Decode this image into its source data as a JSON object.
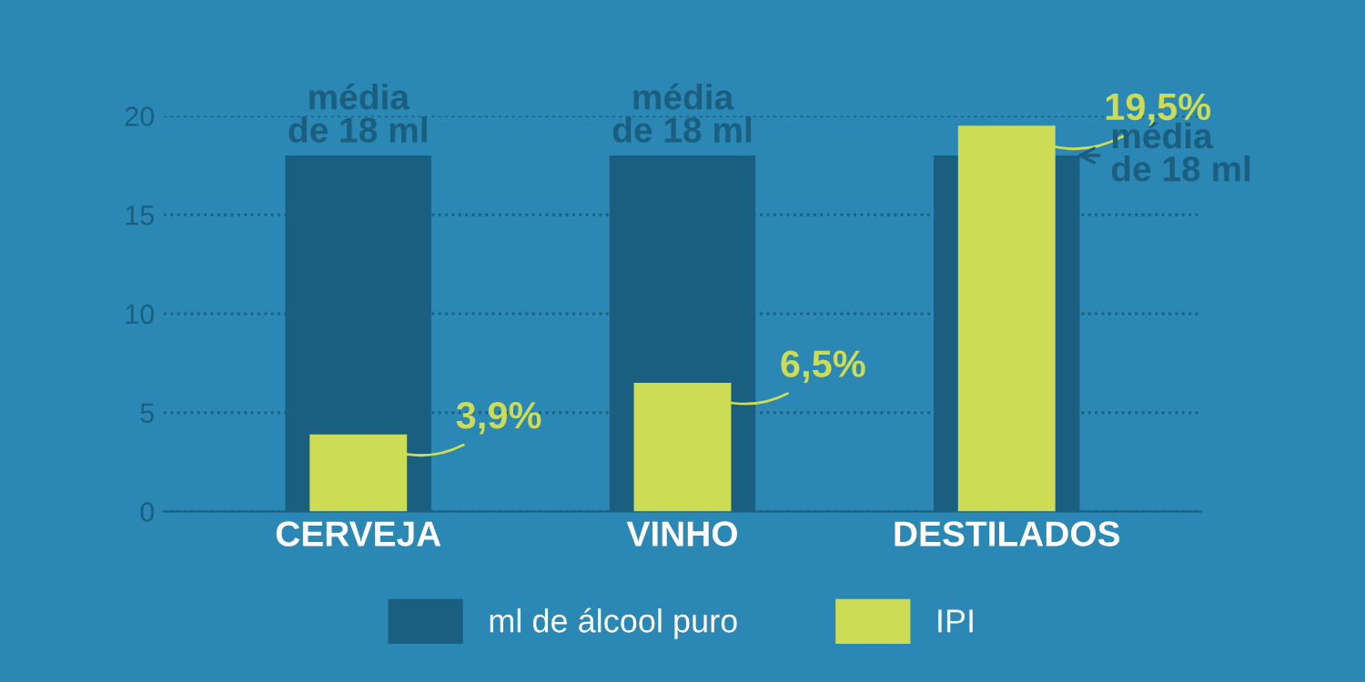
{
  "chart_data": {
    "type": "bar",
    "categories": [
      "CERVEJA",
      "VINHO",
      "DESTILADOS"
    ],
    "series": [
      {
        "name": "ml de álcool puro",
        "color": "#1b5f80",
        "values": [
          18,
          18,
          18
        ]
      },
      {
        "name": "IPI",
        "color": "#cddc55",
        "values": [
          3.9,
          6.5,
          19.5
        ],
        "value_labels": [
          "3,9%",
          "6,5%",
          "19,5%"
        ]
      }
    ],
    "annotations": [
      {
        "text": "média\nde 18 ml",
        "x": "CERVEJA",
        "y": 18
      },
      {
        "text": "média\nde 18 ml",
        "x": "VINHO",
        "y": 18
      },
      {
        "text": "média\nde 18 ml",
        "x": "DESTILADOS",
        "y": 18
      }
    ],
    "ylim": [
      0,
      20
    ],
    "yticks": [
      0,
      5,
      10,
      15,
      20
    ],
    "grid": "y",
    "legend": "bottom"
  }
}
